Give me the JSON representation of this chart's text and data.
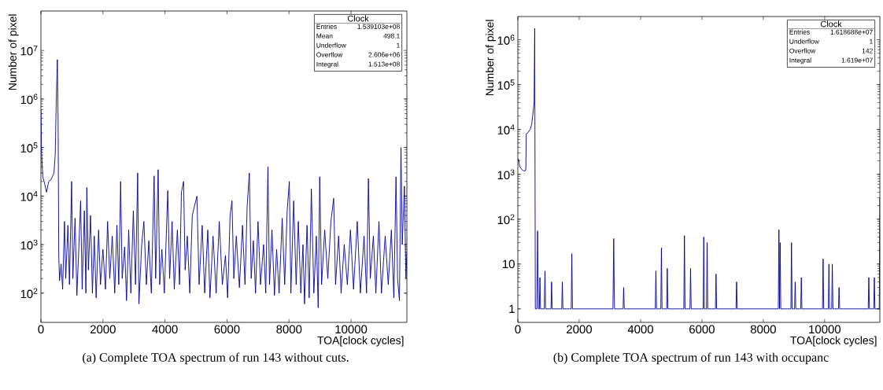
{
  "chart_data": [
    {
      "type": "line",
      "xlabel": "TOA[clock cycles]",
      "ylabel": "Number of pixel",
      "log": "y",
      "color": "#000099",
      "marker": "none",
      "annotations": [
        "(a) Complete TOA spectrum of run 143 without cuts.",
        "Clock",
        "Entries",
        "1.539103e+08",
        "Mean",
        "498.1",
        "Underflow",
        "1",
        "Overflow",
        "2.606e+06",
        "Integral",
        "1.513e+08"
      ],
      "xlim": [
        0,
        11800
      ],
      "ylim": [
        25,
        65000000
      ],
      "xticks": [
        0,
        2000,
        4000,
        6000,
        8000,
        10000
      ],
      "yticks": [
        {
          "value": 100,
          "label": "10$^{2}$"
        },
        {
          "value": 1000,
          "label": "10$^{3}$"
        },
        {
          "value": 10000,
          "label": "10$^{4}$"
        },
        {
          "value": 100000,
          "label": "10$^{5}$"
        },
        {
          "value": 1000000,
          "label": "10$^{6}$"
        },
        {
          "value": 10000000,
          "label": "10$^{7}$"
        }
      ],
      "x": [
        0,
        20,
        60,
        120,
        180,
        250,
        330,
        420,
        460,
        500,
        530,
        555,
        575,
        600,
        650,
        700,
        760,
        800,
        870,
        920,
        990,
        1030,
        1100,
        1160,
        1220,
        1280,
        1330,
        1400,
        1450,
        1480,
        1530,
        1600,
        1660,
        1720,
        1780,
        1860,
        1920,
        2000,
        2080,
        2150,
        2220,
        2300,
        2380,
        2450,
        2510,
        2570,
        2620,
        2700,
        2760,
        2830,
        2900,
        2980,
        3050,
        3120,
        3160,
        3250,
        3320,
        3400,
        3480,
        3560,
        3650,
        3700,
        3780,
        3830,
        3900,
        3980,
        4090,
        4150,
        4230,
        4300,
        4400,
        4470,
        4530,
        4600,
        4650,
        4720,
        4800,
        4880,
        5030,
        5100,
        5200,
        5280,
        5380,
        5450,
        5550,
        5650,
        5750,
        5850,
        5950,
        6020,
        6100,
        6160,
        6220,
        6300,
        6400,
        6500,
        6580,
        6650,
        6720,
        6780,
        6850,
        6920,
        7000,
        7080,
        7180,
        7250,
        7320,
        7370,
        7450,
        7530,
        7600,
        7680,
        7780,
        7860,
        7940,
        8010,
        8060,
        8150,
        8230,
        8300,
        8380,
        8450,
        8500,
        8580,
        8650,
        8720,
        8800,
        8880,
        8940,
        8990,
        9050,
        9150,
        9250,
        9350,
        9440,
        9500,
        9600,
        9680,
        9780,
        9880,
        9980,
        10080,
        10200,
        10300,
        10420,
        10500,
        10560,
        10620,
        10720,
        10800,
        10900,
        10980,
        11100,
        11200,
        11300,
        11380,
        11450,
        11500,
        11560,
        11610,
        11650,
        11720,
        11770,
        11800
      ],
      "values": [
        600000,
        80000,
        25000,
        18000,
        12000,
        20000,
        22000,
        30000,
        70000,
        1300000,
        6500000,
        300000,
        600,
        180,
        400,
        120,
        3000,
        200,
        2500,
        150,
        20000,
        200,
        3500,
        90,
        800,
        8000,
        120,
        5000,
        100,
        15000,
        300,
        4000,
        100,
        1500,
        80,
        2000,
        150,
        800,
        120,
        3000,
        200,
        1500,
        100,
        2500,
        150,
        20000,
        200,
        900,
        70,
        2000,
        100,
        5000,
        150,
        30000,
        60,
        1000,
        3000,
        150,
        1200,
        100,
        26000,
        200,
        35000,
        150,
        800,
        100,
        13000,
        200,
        3000,
        120,
        2000,
        150,
        12000,
        20000,
        300,
        1500,
        100,
        4000,
        10000,
        150,
        2500,
        100,
        2000,
        80,
        1500,
        100,
        3000,
        150,
        600,
        80,
        4000,
        8000,
        200,
        1500,
        130,
        2500,
        150,
        6000,
        30000,
        200,
        1200,
        100,
        3000,
        150,
        1000,
        100,
        40000,
        150,
        2000,
        90,
        800,
        100,
        3500,
        150,
        5000,
        20000,
        100,
        8000,
        150,
        3000,
        100,
        1000,
        60,
        2500,
        80,
        14000,
        100,
        1500,
        50,
        25000,
        150,
        2000,
        200,
        3000,
        9000,
        150,
        1500,
        100,
        1000,
        150,
        2000,
        120,
        3000,
        100,
        1500,
        100,
        23000,
        200,
        1500,
        100,
        3000,
        100,
        1500,
        150,
        2000,
        80,
        25000,
        200,
        70,
        100000,
        1000,
        16000,
        200,
        700
      ]
    },
    {
      "type": "line",
      "xlabel": "TOA[clock cycles]",
      "ylabel": "Number of pixel",
      "log": "y",
      "color": "#000099",
      "marker": "none",
      "annotations": [
        "(b) Complete TOA spectrum of run 143 with occupanc",
        "Clock",
        "Entries",
        "1.618688e+07",
        "Underflow",
        "1",
        "Overflow",
        "142",
        "Integral",
        "1.619e+07"
      ],
      "xlim": [
        0,
        11800
      ],
      "ylim": [
        0.5,
        3300000
      ],
      "xticks": [
        0,
        2000,
        4000,
        6000,
        8000,
        10000
      ],
      "yticks": [
        1,
        10,
        {
          "value": 100,
          "label": "10$^{2}$"
        },
        {
          "value": 1000,
          "label": "10$^{3}$"
        },
        {
          "value": 10000,
          "label": "10$^{4}$"
        },
        {
          "value": 100000,
          "label": "10$^{5}$"
        },
        {
          "value": 1000000,
          "label": "10$^{6}$"
        }
      ],
      "x": [
        0,
        20,
        60,
        120,
        180,
        240,
        260,
        275,
        330,
        400,
        450,
        500,
        530,
        550,
        570,
        620,
        645,
        670,
        700,
        720,
        740,
        860,
        885,
        905,
        1080,
        1100,
        1120,
        1430,
        1450,
        1470,
        1740,
        1760,
        1780,
        3100,
        3125,
        3150,
        3430,
        3450,
        3470,
        4480,
        4500,
        4520,
        4660,
        4680,
        4700,
        4850,
        4870,
        4890,
        5410,
        5430,
        5450,
        5610,
        5630,
        5650,
        6040,
        6060,
        6080,
        6150,
        6170,
        6190,
        6440,
        6460,
        6480,
        7110,
        7130,
        7150,
        8490,
        8510,
        8530,
        8550,
        8570,
        8900,
        8920,
        8940,
        9020,
        9040,
        9060,
        9220,
        9240,
        9260,
        9930,
        9950,
        9970,
        10120,
        10140,
        10160,
        10230,
        10250,
        10270,
        10450,
        10470,
        10490,
        11420,
        11440,
        11460,
        11600,
        11620,
        11640,
        11780,
        11800
      ],
      "values": [
        2000,
        2200,
        1500,
        1300,
        1200,
        1200,
        1300,
        8000,
        8500,
        10000,
        13000,
        25000,
        40000,
        1800000,
        1,
        1,
        55,
        1,
        1,
        5,
        1,
        1,
        7,
        1,
        1,
        4,
        1,
        1,
        4,
        1,
        1,
        17,
        1,
        1,
        37,
        1,
        1,
        3,
        1,
        1,
        7,
        1,
        1,
        23,
        1,
        1,
        8,
        1,
        1,
        43,
        1,
        1,
        8,
        1,
        1,
        40,
        1,
        1,
        30,
        1,
        1,
        6,
        1,
        1,
        4,
        1,
        1,
        58,
        1,
        30,
        1,
        1,
        30,
        1,
        1,
        4,
        1,
        1,
        5,
        1,
        1,
        13,
        1,
        1,
        10,
        1,
        1,
        10,
        1,
        1,
        3,
        1,
        1,
        5,
        1,
        1,
        5,
        1,
        1,
        300
      ]
    }
  ]
}
